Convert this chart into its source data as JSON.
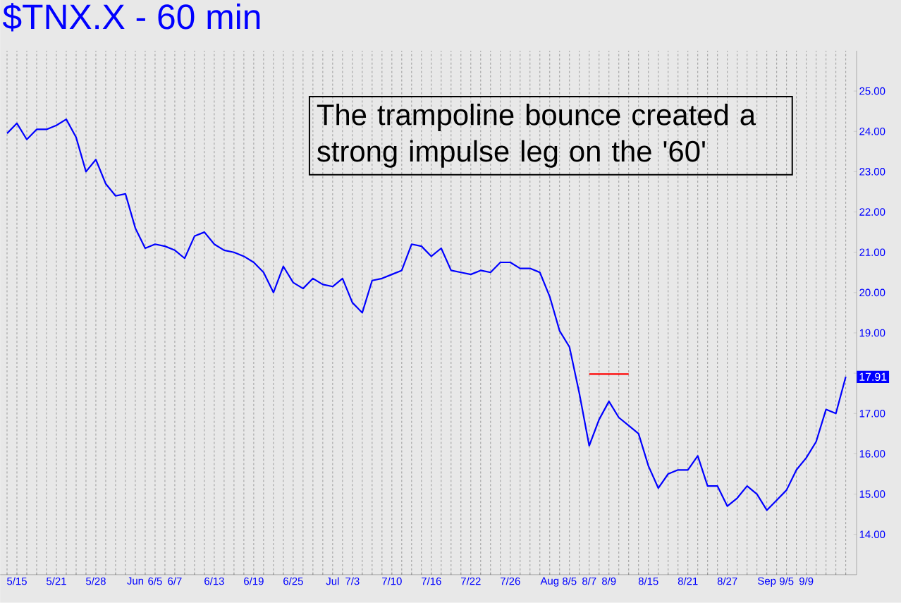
{
  "chart_data": {
    "type": "line",
    "title": "$TNX.X - 60 min",
    "annotations": [
      "The trampoline bounce created a strong impulse leg on the '60'",
      "17.91"
    ],
    "categories": [
      null,
      "5/15",
      null,
      null,
      null,
      "5/21",
      null,
      null,
      null,
      "5/28",
      null,
      null,
      null,
      "Jun",
      null,
      "6/5",
      null,
      "6/7",
      null,
      null,
      null,
      "6/13",
      null,
      null,
      null,
      "6/19",
      null,
      null,
      null,
      "6/25",
      null,
      null,
      null,
      "Jul",
      null,
      "7/3",
      null,
      null,
      null,
      "7/10",
      null,
      null,
      null,
      "7/16",
      null,
      null,
      null,
      "7/22",
      null,
      null,
      null,
      "7/26",
      null,
      null,
      null,
      "Aug",
      null,
      "8/5",
      null,
      "8/7",
      null,
      "8/9",
      null,
      null,
      null,
      "8/15",
      null,
      null,
      null,
      "8/21",
      null,
      null,
      null,
      "8/27",
      null,
      null,
      null,
      "Sep",
      null,
      "9/5",
      null,
      "9/9",
      null,
      null,
      null,
      null
    ],
    "ylim": [
      13.0,
      26.0
    ],
    "yticks": [
      {
        "value": 14,
        "label": "14.00"
      },
      {
        "value": 15,
        "label": "15.00"
      },
      {
        "value": 16,
        "label": "16.00"
      },
      {
        "value": 17,
        "label": "17.00"
      },
      {
        "value": 18,
        "label": null
      },
      {
        "value": 19,
        "label": "19.00"
      },
      {
        "value": 20,
        "label": "20.00"
      },
      {
        "value": 21,
        "label": "21.00"
      },
      {
        "value": 22,
        "label": "22.00"
      },
      {
        "value": 23,
        "label": "23.00"
      },
      {
        "value": 24,
        "label": "24.00"
      },
      {
        "value": 25,
        "label": "25.00"
      }
    ],
    "grid": "x",
    "series": [
      {
        "color": "#0000ff",
        "values": [
          23.95,
          24.2,
          23.8,
          24.05,
          24.05,
          24.15,
          24.3,
          23.85,
          23.0,
          23.3,
          22.7,
          22.4,
          22.45,
          21.6,
          21.1,
          21.2,
          21.15,
          21.05,
          20.85,
          21.4,
          21.5,
          21.2,
          21.05,
          21.0,
          20.9,
          20.75,
          20.5,
          20.0,
          20.65,
          20.25,
          20.1,
          20.35,
          20.2,
          20.15,
          20.35,
          19.75,
          19.5,
          20.3,
          20.35,
          20.45,
          20.55,
          21.2,
          21.15,
          20.9,
          21.1,
          20.55,
          20.5,
          20.45,
          20.55,
          20.5,
          20.75,
          20.75,
          20.6,
          20.6,
          20.5,
          19.9,
          19.05,
          18.65,
          17.5,
          16.2,
          16.85,
          17.3,
          16.9,
          16.7,
          16.5,
          15.7,
          15.15,
          15.5,
          15.6,
          15.6,
          15.95,
          15.2,
          15.2,
          14.7,
          14.9,
          15.2,
          15.0,
          14.6,
          14.85,
          15.1,
          15.6,
          15.9,
          16.3,
          17.1,
          17.0,
          17.91
        ]
      },
      {
        "color": "#ff0000",
        "values": [
          null,
          null,
          null,
          null,
          null,
          null,
          null,
          null,
          null,
          null,
          null,
          null,
          null,
          null,
          null,
          null,
          null,
          null,
          null,
          null,
          null,
          null,
          null,
          null,
          null,
          null,
          null,
          null,
          null,
          null,
          null,
          null,
          null,
          null,
          null,
          null,
          null,
          null,
          null,
          null,
          null,
          null,
          null,
          null,
          null,
          null,
          null,
          null,
          null,
          null,
          null,
          null,
          null,
          null,
          null,
          null,
          null,
          null,
          null,
          17.98,
          17.98,
          17.98,
          17.98,
          17.98,
          null,
          null,
          null,
          null,
          null,
          null,
          null,
          null,
          null,
          null,
          null,
          null,
          null,
          null,
          null,
          null,
          null,
          null,
          null,
          null,
          null,
          null
        ]
      }
    ]
  }
}
